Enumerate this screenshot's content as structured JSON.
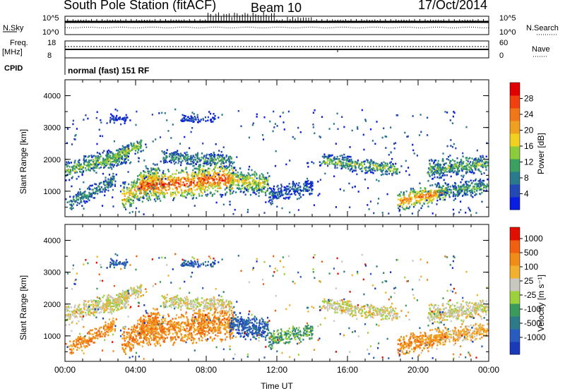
{
  "header": {
    "station": "South Pole Station (fitACF)",
    "beam": "Beam 10",
    "date": "17/Oct/2014"
  },
  "status_panels": {
    "nsky_label": "N.Sky",
    "nsearch_label": "N.Search",
    "freq_label_1": "Freq.",
    "freq_label_2": "[MHz]",
    "nave_label": "Nave",
    "cpid_label": "CPID",
    "cpid_text": "normal (fast) 151 RF",
    "noise_ticks_left": [
      "10^5",
      "10^0"
    ],
    "noise_ticks_right": [
      "10^5",
      "10^0"
    ],
    "freq_ticks": [
      "18",
      "8"
    ],
    "nave_ticks": [
      "60",
      "0"
    ]
  },
  "chart_data": [
    {
      "type": "heatmap",
      "panel": "power",
      "ylabel": "Slant Range [km]",
      "yticks": [
        "4000",
        "3000",
        "2000",
        "1000"
      ],
      "ylim": [
        200,
        4500
      ],
      "xlim": [
        "00:00",
        "24:00"
      ],
      "colorbar": {
        "label": "Power [dB]",
        "ticks": [
          "28",
          "24",
          "20",
          "16",
          "12",
          "8",
          "4"
        ],
        "range": [
          0,
          30
        ],
        "colors": [
          "#0a1ee0",
          "#2448b4",
          "#2a7a8c",
          "#3ca060",
          "#8ccc3c",
          "#f0d020",
          "#f0a020",
          "#f07818",
          "#f04010",
          "#e00000"
        ]
      }
    },
    {
      "type": "heatmap",
      "panel": "velocity",
      "ylabel": "Slant Range [km]",
      "yticks": [
        "4000",
        "3000",
        "2000",
        "1000"
      ],
      "ylim": [
        200,
        4500
      ],
      "xlim": [
        "00:00",
        "24:00"
      ],
      "xlabel": "Time UT",
      "xticks": [
        "00:00",
        "04:00",
        "08:00",
        "12:00",
        "16:00",
        "20:00",
        "00:00"
      ],
      "colorbar": {
        "label": "Velocity [m s⁻¹]",
        "ticks": [
          "1000",
          "500",
          "100",
          "25",
          "-25",
          "-100",
          "-500",
          "-1000"
        ],
        "colors": [
          "#1a3ab8",
          "#2a5cc0",
          "#2e7a88",
          "#3c9a5c",
          "#9cd03c",
          "#c8c8c0",
          "#f0b030",
          "#f08c18",
          "#f06010",
          "#e01000"
        ]
      }
    }
  ]
}
